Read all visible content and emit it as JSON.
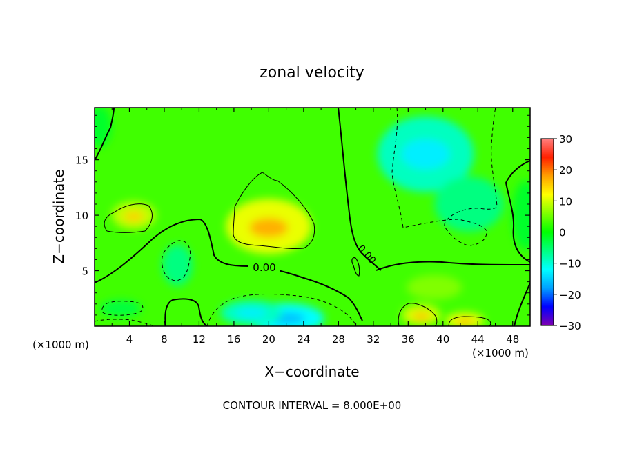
{
  "chart_data": {
    "type": "heatmap",
    "title": "zonal velocity",
    "xlabel": "X−coordinate",
    "ylabel": "Z−coordinate",
    "x_unit_left": "(×1000 m)",
    "x_unit_right": "(×1000 m)",
    "footer": "CONTOUR INTERVAL = 8.000E+00",
    "contour_label": "0.00",
    "xlim": [
      0,
      50
    ],
    "ylim": [
      0,
      19.7
    ],
    "x_ticks": [
      "4",
      "8",
      "12",
      "16",
      "20",
      "24",
      "28",
      "32",
      "36",
      "40",
      "44",
      "48"
    ],
    "y_ticks": [
      "5",
      "10",
      "15"
    ],
    "colorbar": {
      "range": [
        -30,
        30
      ],
      "tick_labels": [
        "30",
        "20",
        "10",
        "0",
        "−10",
        "−20",
        "−30"
      ],
      "colors": [
        "#7f00b0",
        "#0000ff",
        "#00a0ff",
        "#00ffff",
        "#00ff80",
        "#00ff00",
        "#80ff00",
        "#ffff00",
        "#ffa000",
        "#ff2000",
        "#ff8080"
      ]
    },
    "background_value": 3,
    "features": [
      {
        "name": "upper-center max",
        "x": 20,
        "z": 9,
        "value": 11
      },
      {
        "name": "upper-left max",
        "x": 4.5,
        "z": 10,
        "value": 9
      },
      {
        "name": "left-center min",
        "x": 9.5,
        "z": 5.5,
        "value": -6
      },
      {
        "name": "lower-left min",
        "x": 3,
        "z": 1.6,
        "value": -3
      },
      {
        "name": "bottom-center min",
        "x": 22,
        "z": 0.7,
        "value": -12
      },
      {
        "name": "bottom-center min 2",
        "x": 18,
        "z": 1.2,
        "value": -9
      },
      {
        "name": "upper-right min",
        "x": 38,
        "z": 15.5,
        "value": -9
      },
      {
        "name": "upper-right min 2",
        "x": 43,
        "z": 11,
        "value": -6
      },
      {
        "name": "lower-right max 1",
        "x": 37.5,
        "z": 1.0,
        "value": 10
      },
      {
        "name": "lower-right max 2",
        "x": 42.5,
        "z": 0.5,
        "value": 11
      },
      {
        "name": "lower-right max 3",
        "x": 39,
        "z": 3.5,
        "value": 6
      },
      {
        "name": "far-right min",
        "x": 49.5,
        "z": 10,
        "value": -2
      },
      {
        "name": "top-left min",
        "x": 0.5,
        "z": 18,
        "value": -2
      }
    ]
  }
}
